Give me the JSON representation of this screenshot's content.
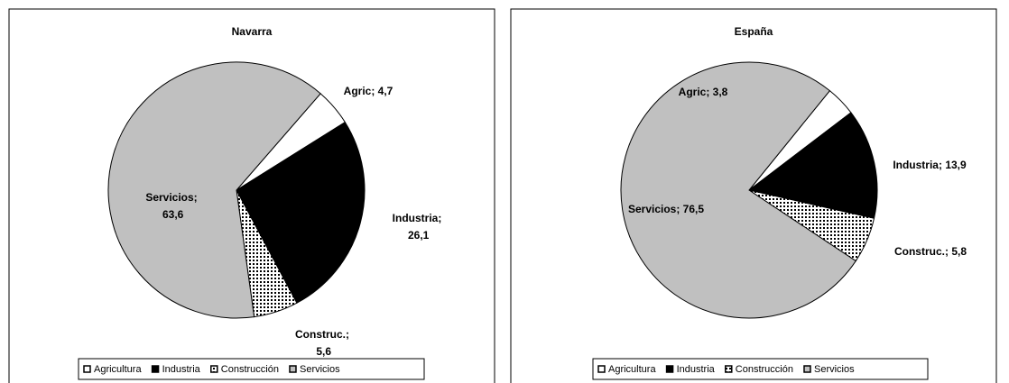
{
  "chart_data": [
    {
      "type": "pie",
      "title": "Navarra",
      "categories": [
        "Agricultura",
        "Industria",
        "Construcción",
        "Servicios"
      ],
      "values": [
        4.7,
        26.1,
        5.6,
        63.6
      ],
      "value_labels": [
        "Agric; 4,7",
        "Industria; 26,1",
        "Construc.; 5,6",
        "Servicios; 63,6"
      ],
      "colors": [
        "#ffffff",
        "#000000",
        "#ffffff",
        "#c0c0c0"
      ],
      "legend": "bottom"
    },
    {
      "type": "pie",
      "title": "España",
      "categories": [
        "Agricultura",
        "Industria",
        "Construcción",
        "Servicios"
      ],
      "values": [
        3.8,
        13.9,
        5.8,
        76.5
      ],
      "value_labels": [
        "Agric; 3,8",
        "Industria; 13,9",
        "Construc.; 5,8",
        "Servicios; 76,5"
      ],
      "colors": [
        "#ffffff",
        "#000000",
        "#ffffff",
        "#c0c0c0"
      ],
      "legend": "bottom"
    }
  ]
}
